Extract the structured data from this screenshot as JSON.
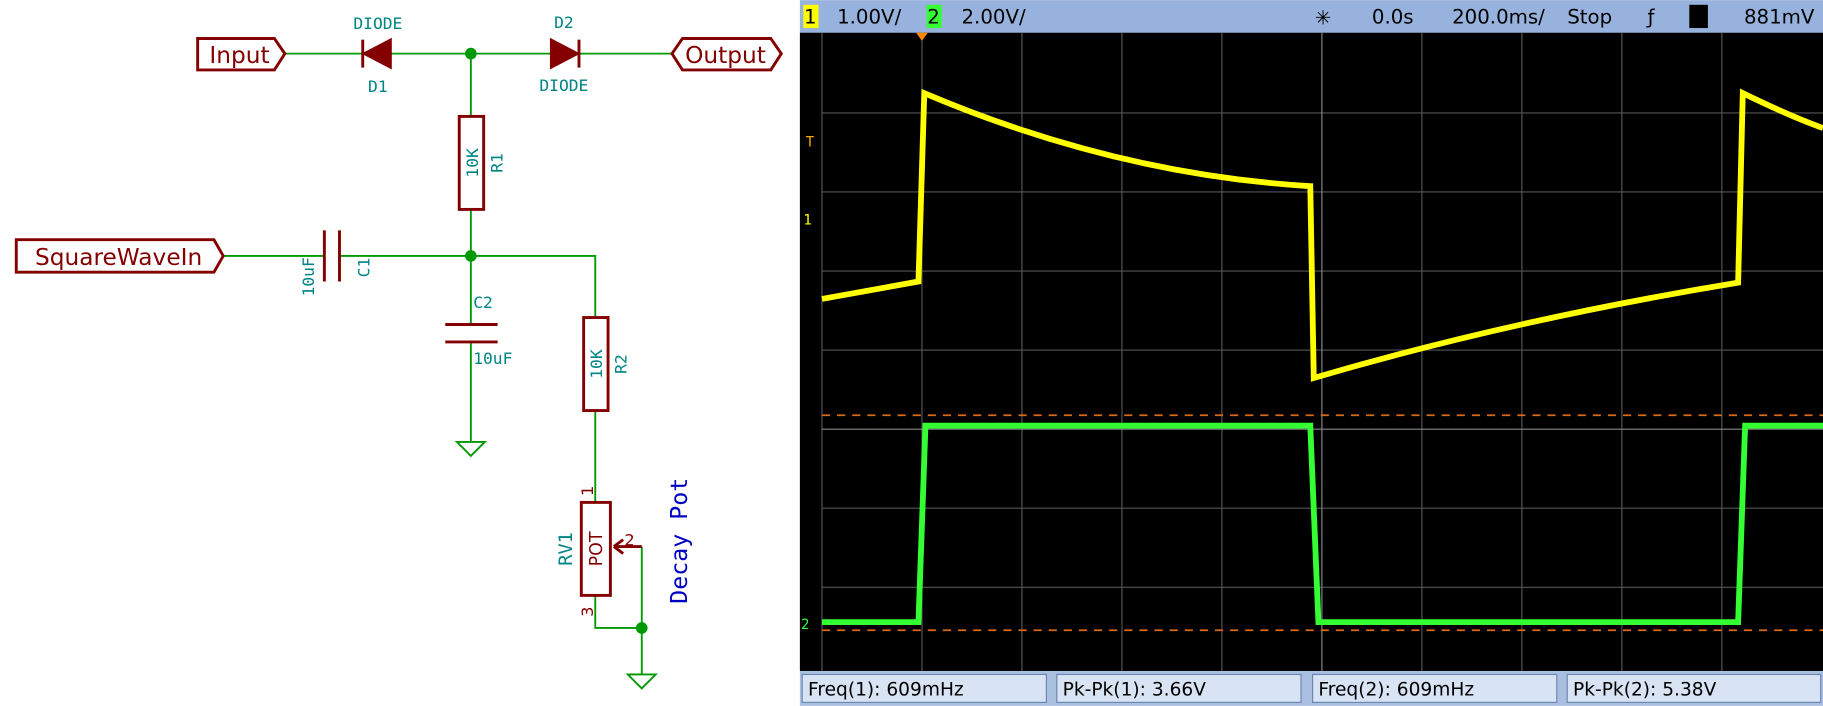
{
  "schematic": {
    "input": "Input",
    "output": "Output",
    "square_wave_in": "SquareWaveIn",
    "d1": {
      "value": "DIODE",
      "ref": "D1"
    },
    "d2": {
      "value": "DIODE",
      "ref": "D2"
    },
    "r1": {
      "value": "10K",
      "ref": "R1"
    },
    "r2": {
      "value": "10K",
      "ref": "R2"
    },
    "c1": {
      "value": "10uF",
      "ref": "C1"
    },
    "c2": {
      "value": "10uF",
      "ref": "C2"
    },
    "rv1": {
      "value": "POT",
      "ref": "RV1",
      "pins": [
        "1",
        "2",
        "3"
      ]
    },
    "note": "Decay Pot"
  },
  "scope": {
    "header": {
      "ch1": "1",
      "ch1_scale": "1.00V/",
      "ch2": "2",
      "ch2_scale": "2.00V/",
      "delay": "0.0s",
      "timebase": "200.0ms/",
      "status": "Stop",
      "trig_ch": "1",
      "trig_level": "881mV"
    },
    "markers": {
      "trigger": "T",
      "ch1": "1",
      "ch2": "2"
    },
    "measurements": [
      "Freq(1): 609mHz",
      "Pk-Pk(1): 3.66V",
      "Freq(2): 609mHz",
      "Pk-Pk(2): 5.38V"
    ]
  }
}
